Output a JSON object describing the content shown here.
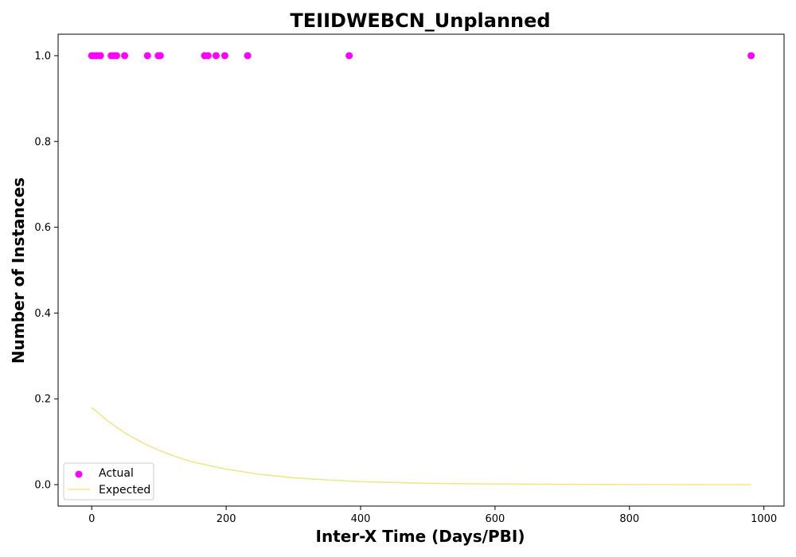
{
  "chart_data": {
    "type": "scatter",
    "title": "TEIIDWEBCN_Unplanned",
    "xlabel": "Inter-X Time (Days/PBI)",
    "ylabel": "Number of Instances",
    "xlim": [
      -50,
      1030
    ],
    "ylim": [
      -0.05,
      1.05
    ],
    "xticks": [
      0,
      200,
      400,
      600,
      800,
      1000
    ],
    "yticks": [
      0.0,
      0.2,
      0.4,
      0.6,
      0.8,
      1.0
    ],
    "xtick_labels": [
      "0",
      "200",
      "400",
      "600",
      "800",
      "1000"
    ],
    "ytick_labels": [
      "0.0",
      "0.2",
      "0.4",
      "0.6",
      "0.8",
      "1.0"
    ],
    "grid": false,
    "legend_position": "lower-left",
    "series": [
      {
        "name": "Actual",
        "kind": "scatter",
        "color": "#ff00ff",
        "x": [
          0,
          4,
          8,
          13,
          29,
          33,
          37,
          49,
          83,
          99,
          102,
          168,
          173,
          185,
          198,
          232,
          383,
          981
        ],
        "y": [
          1,
          1,
          1,
          1,
          1,
          1,
          1,
          1,
          1,
          1,
          1,
          1,
          1,
          1,
          1,
          1,
          1,
          1
        ]
      },
      {
        "name": "Expected",
        "kind": "line",
        "color": "#f0e68c",
        "x": [
          0,
          25,
          50,
          75,
          100,
          125,
          150,
          200,
          250,
          300,
          350,
          400,
          500,
          600,
          700,
          800,
          900,
          981
        ],
        "y": [
          0.18,
          0.147,
          0.12,
          0.098,
          0.08,
          0.065,
          0.053,
          0.036,
          0.024,
          0.016,
          0.011,
          0.007,
          0.003,
          0.0015,
          0.0007,
          0.0003,
          0.0001,
          0.0001
        ]
      }
    ]
  }
}
